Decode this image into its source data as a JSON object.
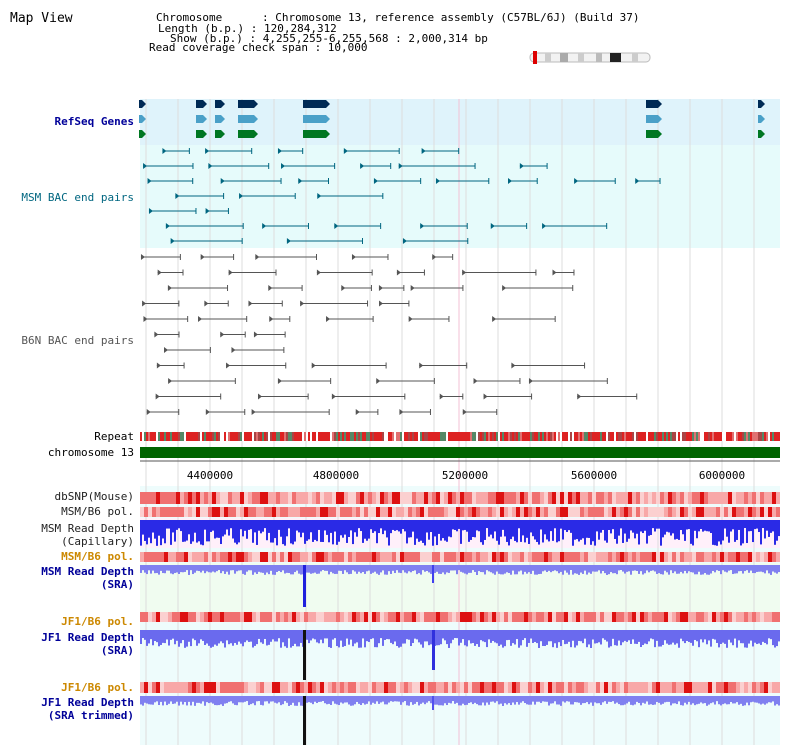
{
  "title": "Map View",
  "header": {
    "chromosome": "Chromosome      : Chromosome 13, reference assembly (C57BL/6J) (Build 37)",
    "length": "Length (b.p.) : 120,284,312",
    "show": "Show (b.p.) : 4,255,255-6,255,568 : 2,000,314 bp",
    "span": "Read coverage check span : 10,000"
  },
  "tracks": {
    "refseq": "RefSeq Genes",
    "msm_bac": "MSM BAC end pairs",
    "b6n_bac": "B6N BAC end pairs",
    "repeat": "Repeat",
    "chromosome": "chromosome 13",
    "dbsnp": "dbSNP(Mouse)",
    "msm_b6_pol_1": "MSM/B6 pol.",
    "msm_depth_cap_1": "MSM Read Depth",
    "msm_depth_cap_2": "(Capillary)",
    "msm_b6_pol_2": "MSM/B6 pol.",
    "msm_depth_sra_1": "MSM Read Depth",
    "msm_depth_sra_2": "(SRA)",
    "jf1_b6_pol_1": "JF1/B6 pol.",
    "jf1_depth_1": "JF1 Read Depth",
    "jf1_depth_2": "(SRA)",
    "jf1_b6_pol_2": "JF1/B6 pol.",
    "jf1_trim_1": "JF1 Read Depth",
    "jf1_trim_2": "(SRA trimmed)"
  },
  "axis": {
    "ticks": [
      "4400000",
      "4800000",
      "5200000",
      "5600000",
      "6000000"
    ]
  },
  "colors": {
    "label_blue": "#000099",
    "label_orange": "#cc8800",
    "label_dark": "#222222",
    "refseq_bg": "#dff3fb",
    "msm_bg": "#e6fbfb",
    "b6n_bg": "#ffffff",
    "chrom_bar": "#006400",
    "depth_blue": "#3333ee",
    "pol_red": "#ee4444",
    "msm_bac_line": "#006680",
    "b6n_bac_line": "#555555"
  }
}
